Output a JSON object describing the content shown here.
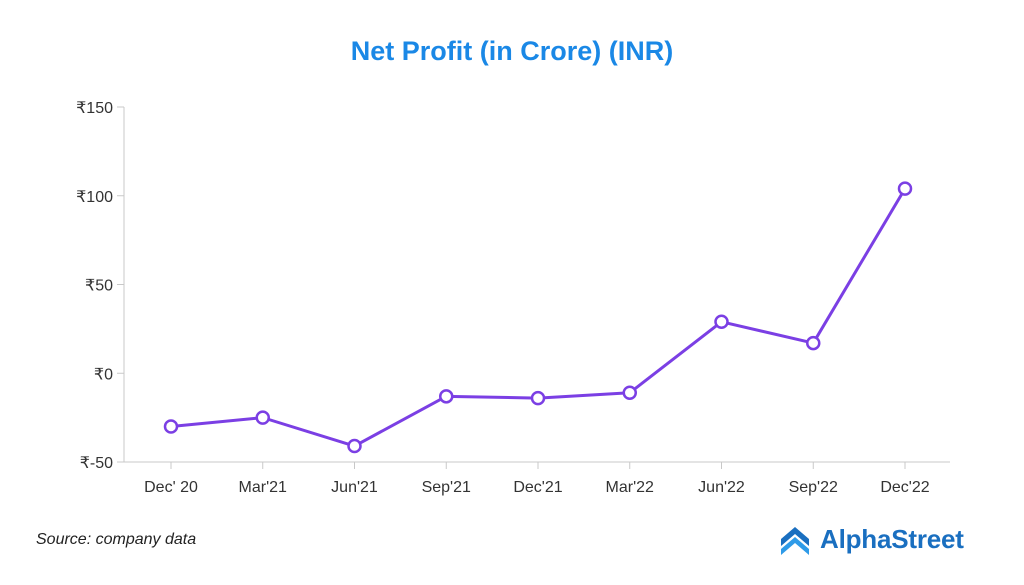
{
  "chart_data": {
    "type": "line",
    "title": "Net Profit (in Crore) (INR)",
    "categories": [
      "Dec' 20",
      "Mar'21",
      "Jun'21",
      "Sep'21",
      "Dec'21",
      "Mar'22",
      "Jun'22",
      "Sep'22",
      "Dec'22"
    ],
    "series": [
      {
        "values": [
          -30,
          -25,
          -41,
          -13,
          -14,
          -11,
          29,
          17,
          104
        ]
      }
    ],
    "ylim": [
      -50,
      150
    ],
    "yticks": [
      -50,
      0,
      50,
      100,
      150
    ],
    "ytick_labels": [
      "₹-50",
      "₹0",
      "₹50",
      "₹100",
      "₹150"
    ],
    "xlabel": "",
    "ylabel": "",
    "grid": false,
    "line_color": "#7b3fe4"
  },
  "footer": {
    "source": "Source: company data",
    "brand": "AlphaStreet"
  },
  "colors": {
    "title": "#1a88e6",
    "brand": "#1a6fc0"
  }
}
